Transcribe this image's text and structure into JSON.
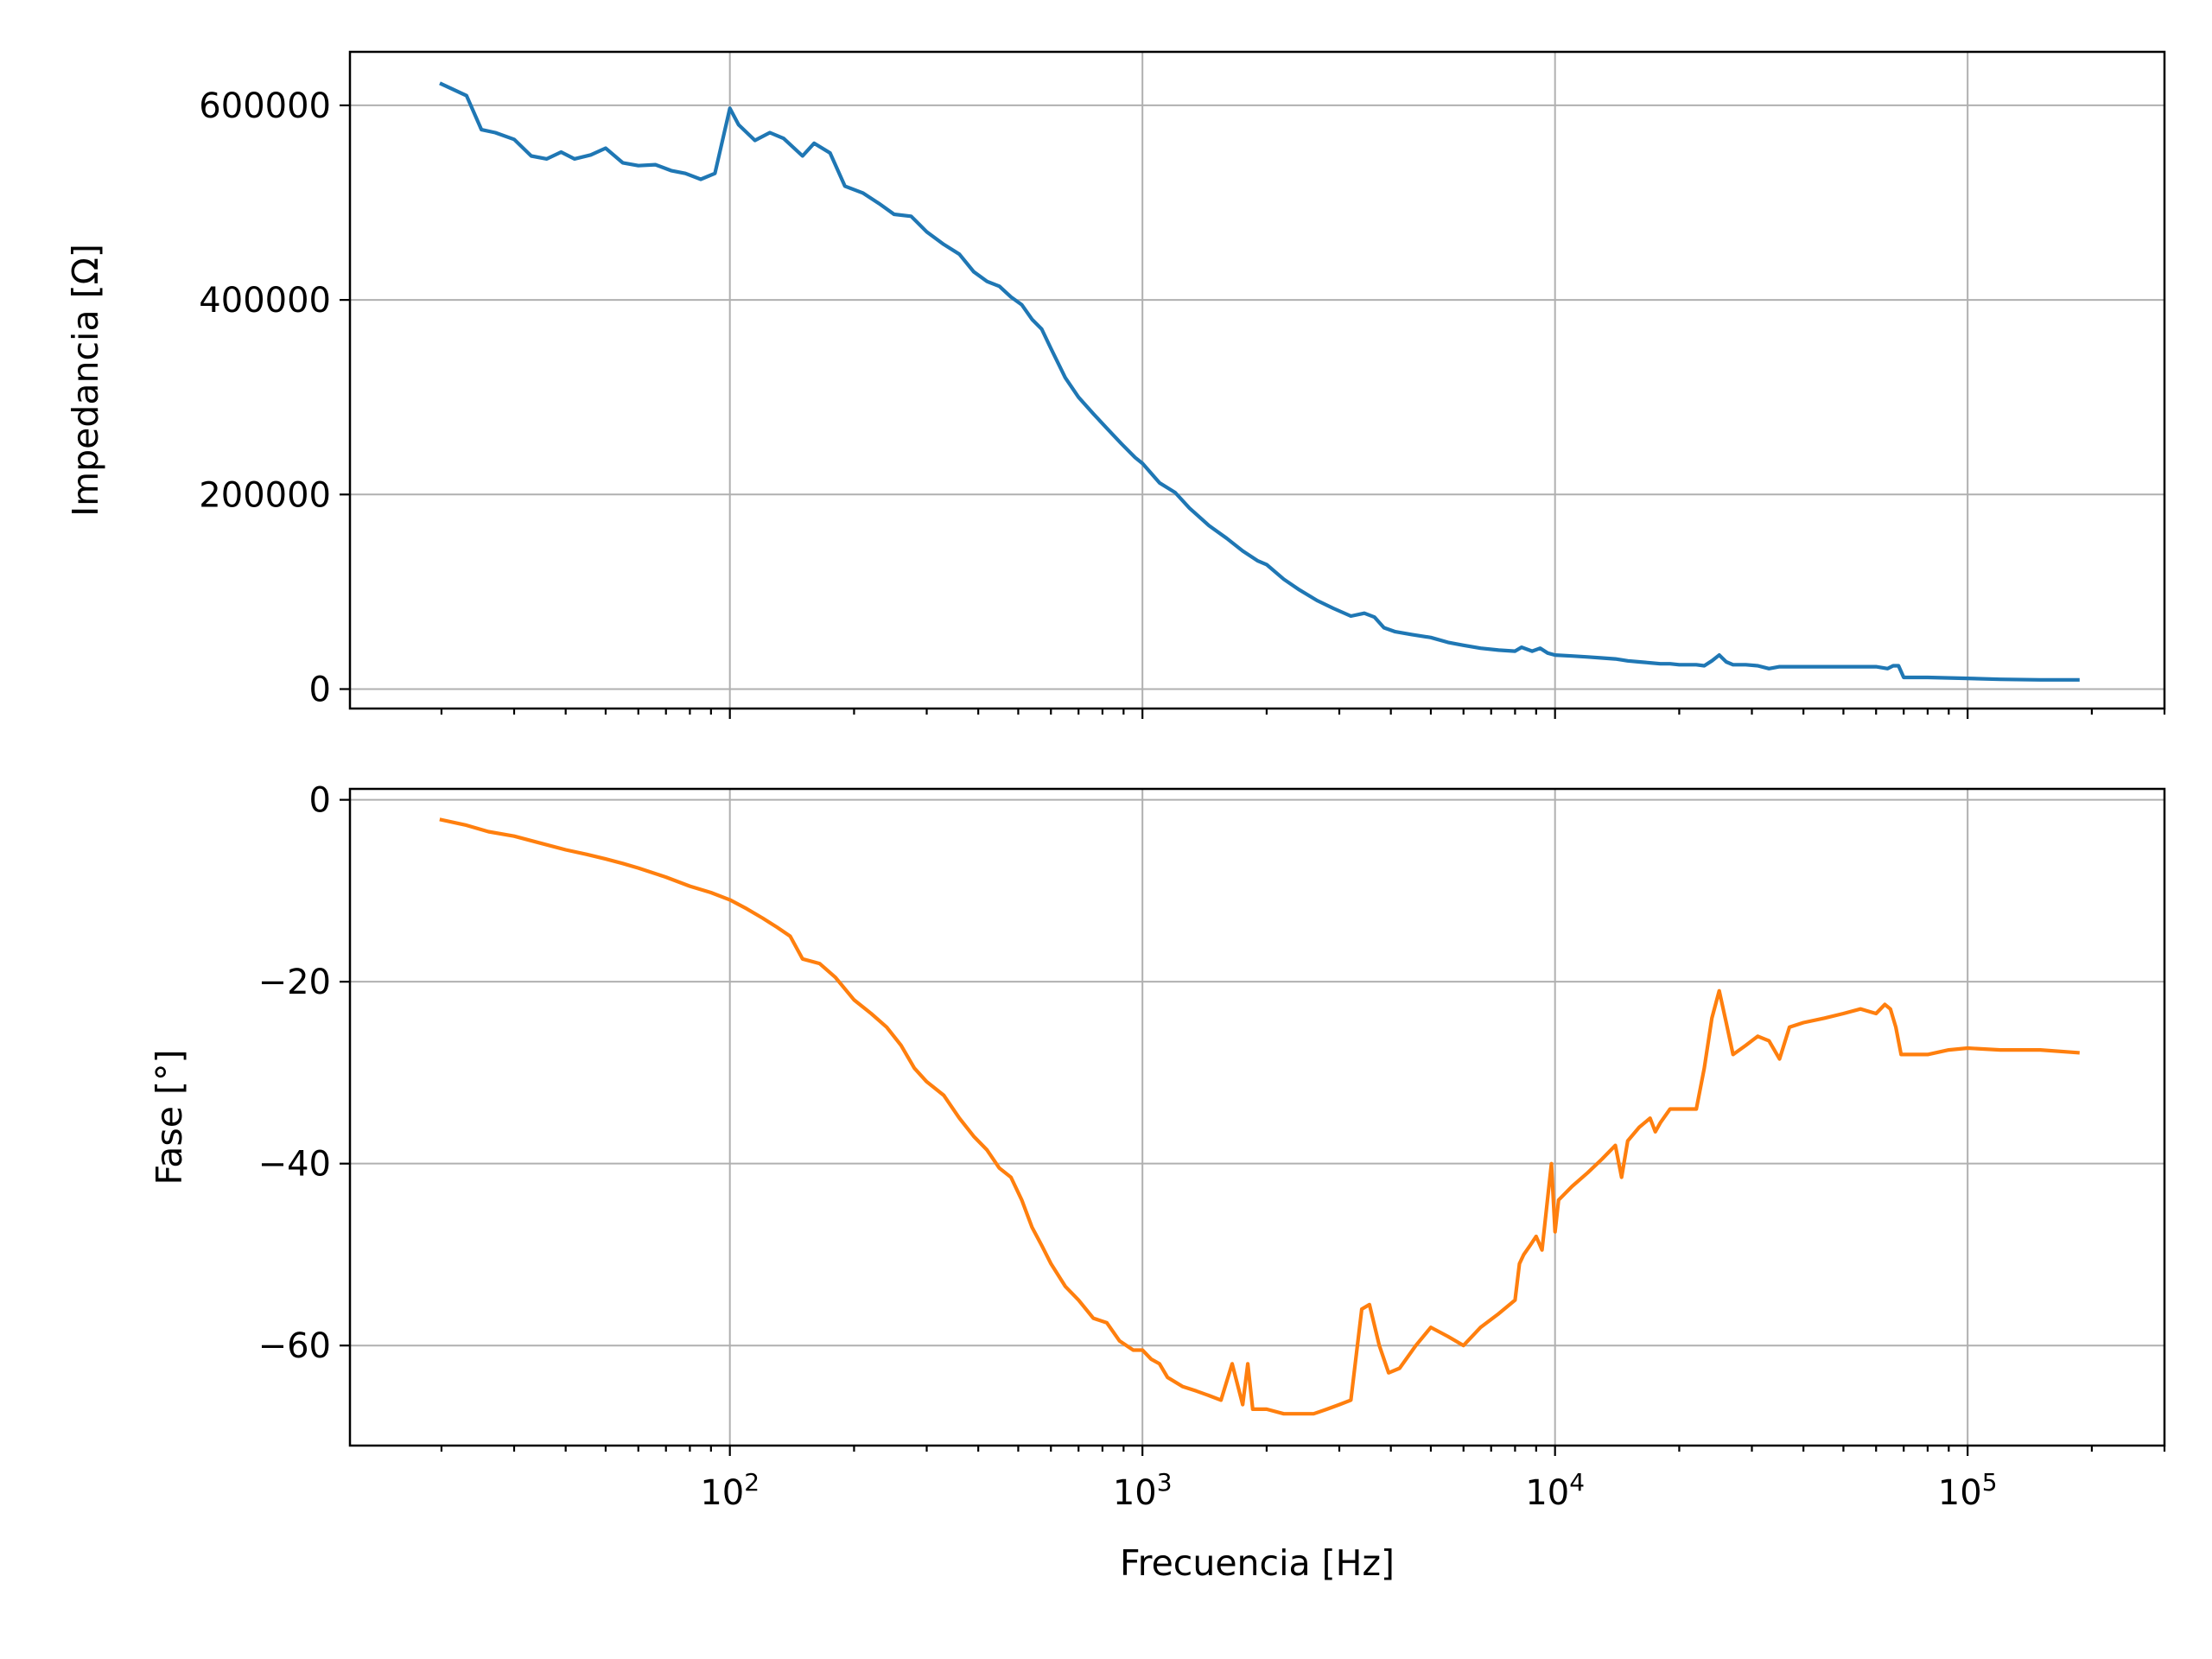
{
  "chart_data": [
    {
      "type": "line",
      "xscale": "log",
      "xlim": [
        12,
        300000
      ],
      "ylim": [
        -20000,
        655000
      ],
      "grid": true,
      "ylabel": "Impedancia [Ω]",
      "xlabel": "",
      "yticks": [
        0,
        200000,
        400000,
        600000
      ],
      "ytick_labels": [
        "0",
        "200000",
        "400000",
        "600000"
      ],
      "xticks": [
        100,
        1000,
        10000,
        100000
      ],
      "xtick_labels": [
        "",
        "",
        "",
        ""
      ],
      "color": "#1f77b4",
      "series": [
        {
          "x": [
            20,
            23,
            25,
            27,
            30,
            33,
            36,
            39,
            42,
            46,
            50,
            55,
            60,
            66,
            72,
            78,
            85,
            92,
            100,
            105,
            115,
            125,
            135,
            150,
            160,
            175,
            190,
            210,
            230,
            250,
            275,
            300,
            330,
            360,
            390,
            420,
            450,
            480,
            510,
            540,
            570,
            600,
            650,
            700,
            760,
            820,
            890,
            960,
            1000,
            1100,
            1200,
            1300,
            1450,
            1600,
            1750,
            1900,
            2000,
            2200,
            2400,
            2650,
            2900,
            3200,
            3450,
            3650,
            3850,
            4100,
            4500,
            5000,
            5500,
            6000,
            6600,
            7300,
            8000,
            8300,
            8800,
            9200,
            9600,
            10000,
            11000,
            12000,
            13000,
            14000,
            14500,
            15000,
            16000,
            17000,
            18000,
            19000,
            20000,
            21000,
            22000,
            23000,
            24000,
            25000,
            26000,
            27000,
            29000,
            31000,
            33000,
            35000,
            37000,
            40000,
            45000,
            50000,
            55000,
            60000,
            64000,
            66000,
            68000,
            70000,
            80000,
            100000,
            120000,
            150000,
            185000
          ],
          "values": [
            622000,
            610000,
            575000,
            572000,
            565000,
            548000,
            545000,
            552000,
            545000,
            549000,
            556000,
            541000,
            538000,
            539000,
            533000,
            530000,
            524000,
            530000,
            597000,
            580000,
            564000,
            572000,
            566000,
            548000,
            561000,
            551000,
            517000,
            510000,
            499000,
            488000,
            486000,
            470000,
            457000,
            447000,
            429000,
            419000,
            414000,
            403000,
            395000,
            380000,
            370000,
            350000,
            320000,
            300000,
            283000,
            268000,
            252000,
            238000,
            232000,
            212000,
            202000,
            186000,
            168000,
            155000,
            142000,
            132000,
            128000,
            113000,
            102000,
            91000,
            83000,
            75000,
            78000,
            74000,
            63000,
            59000,
            56000,
            53000,
            48000,
            45000,
            42000,
            40000,
            39000,
            43000,
            39000,
            42000,
            37000,
            35000,
            34000,
            33000,
            32000,
            31000,
            30000,
            29000,
            28000,
            27000,
            26000,
            26000,
            25000,
            25000,
            25000,
            24000,
            29000,
            35000,
            28000,
            25000,
            25000,
            24000,
            21000,
            23000,
            23000,
            23000,
            23000,
            23000,
            23000,
            23000,
            21000,
            24000,
            24000,
            12000,
            12000,
            11000,
            10000,
            9500,
            9500
          ]
        }
      ]
    },
    {
      "type": "line",
      "xscale": "log",
      "xlim": [
        12,
        300000
      ],
      "ylim": [
        -71,
        1.2
      ],
      "grid": true,
      "ylabel": "Fase [°]",
      "xlabel": "Frecuencia [Hz]",
      "yticks": [
        0,
        -20,
        -40,
        -60
      ],
      "ytick_labels": [
        "0",
        "−20",
        "−40",
        "−60"
      ],
      "xticks": [
        100,
        1000,
        10000,
        100000
      ],
      "xtick_labels": [
        "10^2",
        "10^3",
        "10^4",
        "10^5"
      ],
      "color": "#ff7f0e",
      "series": [
        {
          "x": [
            20,
            23,
            26,
            30,
            35,
            40,
            45,
            50,
            55,
            60,
            70,
            80,
            90,
            100,
            110,
            120,
            130,
            140,
            150,
            165,
            180,
            200,
            220,
            240,
            260,
            280,
            300,
            330,
            360,
            390,
            420,
            450,
            480,
            510,
            540,
            570,
            600,
            650,
            700,
            760,
            820,
            880,
            950,
            1000,
            1050,
            1100,
            1150,
            1250,
            1350,
            1450,
            1550,
            1650,
            1750,
            1800,
            1850,
            1900,
            2000,
            2200,
            2400,
            2600,
            2800,
            3000,
            3200,
            3400,
            3550,
            3750,
            3950,
            4200,
            4600,
            5000,
            5500,
            6000,
            6600,
            7300,
            8000,
            8200,
            8400,
            8700,
            9000,
            9300,
            9800,
            10000,
            10200,
            11000,
            12000,
            13000,
            14000,
            14500,
            15000,
            16000,
            17000,
            17500,
            18000,
            19000,
            20000,
            21000,
            22000,
            23000,
            24000,
            25000,
            26000,
            27000,
            29000,
            31000,
            33000,
            35000,
            37000,
            40000,
            45000,
            50000,
            55000,
            60000,
            63000,
            65000,
            67000,
            69000,
            72000,
            80000,
            90000,
            100000,
            120000,
            150000,
            185000
          ],
          "values": [
            -2.2,
            -2.8,
            -3.5,
            -4.0,
            -4.8,
            -5.5,
            -6.0,
            -6.5,
            -7.0,
            -7.5,
            -8.5,
            -9.5,
            -10.2,
            -11.0,
            -12.0,
            -13.0,
            -14.0,
            -15.0,
            -17.5,
            -18.0,
            -19.5,
            -22.0,
            -23.5,
            -25.0,
            -27.0,
            -29.5,
            -31.0,
            -32.5,
            -35.0,
            -37.0,
            -38.5,
            -40.5,
            -41.5,
            -44.0,
            -47.0,
            -49.0,
            -51.0,
            -53.5,
            -55.0,
            -57.0,
            -57.5,
            -59.5,
            -60.5,
            -60.5,
            -61.5,
            -62.0,
            -63.5,
            -64.5,
            -65.0,
            -65.5,
            -66.0,
            -62.0,
            -66.5,
            -62.0,
            -67.0,
            -67.0,
            -67.0,
            -67.5,
            -67.5,
            -67.5,
            -67.0,
            -66.5,
            -66.0,
            -56.0,
            -55.5,
            -60.0,
            -63.0,
            -62.5,
            -60.0,
            -58.0,
            -59.0,
            -60.0,
            -58.0,
            -56.5,
            -55.0,
            -51.0,
            -50.0,
            -49.0,
            -48.0,
            -49.5,
            -40.0,
            -47.5,
            -44.0,
            -42.5,
            -41.0,
            -39.5,
            -38.0,
            -41.5,
            -37.5,
            -36.0,
            -35.0,
            -36.5,
            -35.5,
            -34.0,
            -34.0,
            -34.0,
            -34.0,
            -29.5,
            -24.0,
            -21.0,
            -24.5,
            -28.0,
            -27.0,
            -26.0,
            -26.5,
            -28.5,
            -25.0,
            -24.5,
            -24.0,
            -23.5,
            -23.0,
            -23.5,
            -22.5,
            -23.0,
            -25.0,
            -28.0,
            -28.0,
            -28.0,
            -27.5,
            -27.3,
            -27.5,
            -27.5,
            -27.8
          ]
        }
      ]
    }
  ]
}
